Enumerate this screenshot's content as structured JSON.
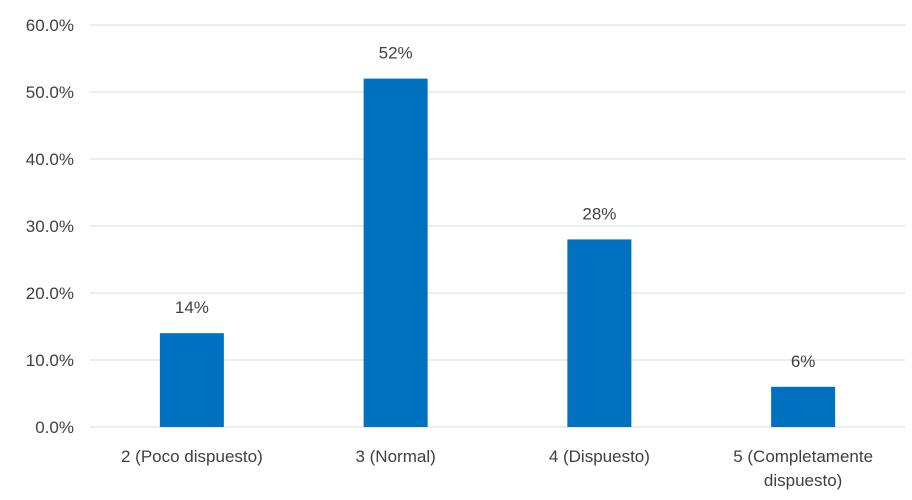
{
  "chart_data": {
    "type": "bar",
    "title": "",
    "xlabel": "",
    "ylabel": "",
    "categories": [
      "2 (Poco dispuesto)",
      "3 (Normal)",
      "4 (Dispuesto)",
      "5 (Completamente dispuesto)"
    ],
    "values": [
      14,
      52,
      28,
      6
    ],
    "data_labels": [
      "14%",
      "52%",
      "28%",
      "6%"
    ],
    "ylim": [
      0,
      60
    ],
    "yticks": [
      0,
      10,
      20,
      30,
      40,
      50,
      60
    ],
    "ytick_labels": [
      "0.0%",
      "10.0%",
      "20.0%",
      "30.0%",
      "40.0%",
      "50.0%",
      "60.0%"
    ],
    "grid": true,
    "legend": "none",
    "bar_color": "#0070C0",
    "grid_color": "#d9d9d9",
    "text_color": "#404040"
  }
}
